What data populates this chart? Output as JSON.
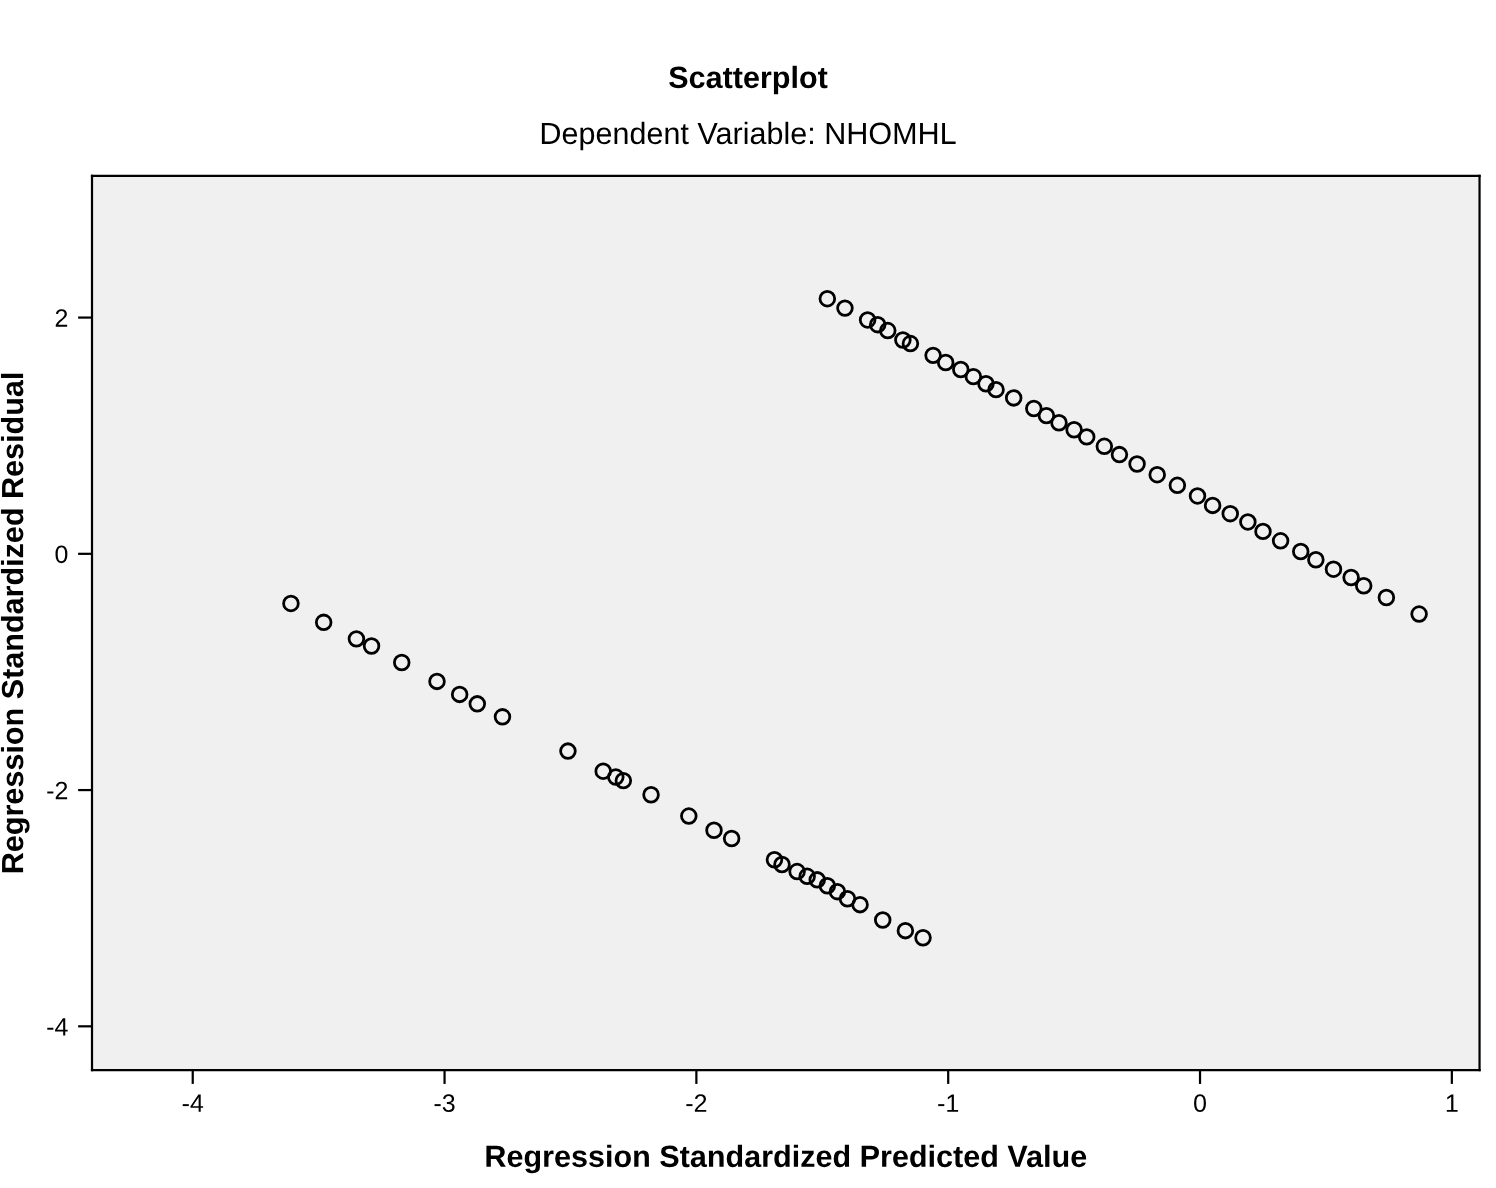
{
  "chart_data": {
    "type": "scatter",
    "title": "Scatterplot",
    "subtitle": "Dependent Variable: NHOMHL",
    "xlabel": "Regression Standardized Predicted Value",
    "ylabel": "Regression Standardized Residual",
    "xlim": [
      -4.4,
      1.11
    ],
    "ylim": [
      -4.37,
      3.2
    ],
    "xticks": [
      -4,
      -3,
      -2,
      -1,
      0,
      1
    ],
    "yticks": [
      -4,
      -2,
      0,
      2
    ],
    "grid": false,
    "legend": false,
    "marker": "circle",
    "series": [
      {
        "color": "#000000",
        "x": [
          -3.61,
          -3.48,
          -3.35,
          -3.29,
          -3.17,
          -3.03,
          -2.94,
          -2.87,
          -2.77,
          -2.51,
          -2.37,
          -2.32,
          -2.29,
          -2.18,
          -2.03,
          -1.93,
          -1.86,
          -1.69,
          -1.66,
          -1.6,
          -1.56,
          -1.52,
          -1.48,
          -1.44,
          -1.4,
          -1.35,
          -1.26,
          -1.17,
          -1.1,
          -1.48,
          -1.41,
          -1.32,
          -1.28,
          -1.24,
          -1.18,
          -1.15,
          -1.06,
          -1.01,
          -0.95,
          -0.9,
          -0.85,
          -0.81,
          -0.74,
          -0.66,
          -0.61,
          -0.56,
          -0.5,
          -0.45,
          -0.38,
          -0.32,
          -0.25,
          -0.17,
          -0.09,
          -0.01,
          0.05,
          0.12,
          0.19,
          0.25,
          0.32,
          0.4,
          0.46,
          0.53,
          0.6,
          0.65,
          0.74,
          0.87
        ],
        "values": [
          -0.42,
          -0.58,
          -0.72,
          -0.78,
          -0.92,
          -1.08,
          -1.19,
          -1.27,
          -1.38,
          -1.67,
          -1.84,
          -1.89,
          -1.92,
          -2.04,
          -2.22,
          -2.34,
          -2.41,
          -2.59,
          -2.63,
          -2.69,
          -2.73,
          -2.76,
          -2.81,
          -2.86,
          -2.92,
          -2.97,
          -3.1,
          -3.19,
          -3.25,
          2.16,
          2.08,
          1.98,
          1.94,
          1.89,
          1.81,
          1.78,
          1.68,
          1.62,
          1.56,
          1.5,
          1.44,
          1.39,
          1.32,
          1.23,
          1.17,
          1.11,
          1.05,
          0.99,
          0.91,
          0.84,
          0.76,
          0.67,
          0.58,
          0.49,
          0.41,
          0.34,
          0.27,
          0.19,
          0.11,
          0.02,
          -0.05,
          -0.13,
          -0.2,
          -0.27,
          -0.37,
          -0.51
        ]
      }
    ]
  }
}
